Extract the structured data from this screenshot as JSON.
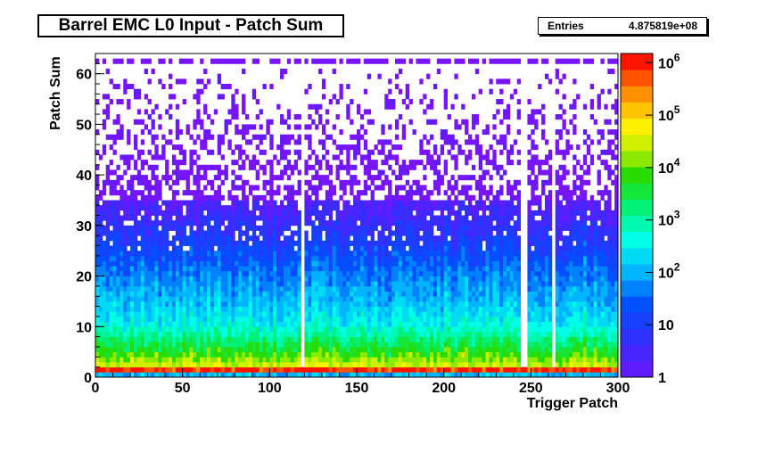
{
  "stats": {
    "label": "Entries",
    "value": "4.875819e+08"
  },
  "date_stamp": "",
  "chart_data": {
    "type": "heatmap",
    "title": "Barrel EMC L0 Input - Patch Sum",
    "xlabel": "Trigger Patch",
    "ylabel": "Patch Sum",
    "xlim": [
      0,
      300
    ],
    "ylim": [
      0,
      64
    ],
    "x_ticks": [
      0,
      50,
      100,
      150,
      200,
      250,
      300
    ],
    "x_tick_labels": [
      "0",
      "50",
      "100",
      "150",
      "200",
      "250",
      "300"
    ],
    "y_ticks": [
      0,
      10,
      20,
      30,
      40,
      50,
      60
    ],
    "y_tick_labels": [
      "0",
      "10",
      "20",
      "30",
      "40",
      "50",
      "60"
    ],
    "z_scale": "log",
    "zlim": [
      1,
      1500000
    ],
    "colorbar_ticks": [
      1,
      10,
      100,
      1000,
      10000,
      100000,
      1000000
    ],
    "colorbar_labels": [
      {
        "base": "1",
        "exp": ""
      },
      {
        "base": "10",
        "exp": ""
      },
      {
        "base": "10",
        "exp": "2"
      },
      {
        "base": "10",
        "exp": "3"
      },
      {
        "base": "10",
        "exp": "4"
      },
      {
        "base": "10",
        "exp": "5"
      },
      {
        "base": "10",
        "exp": "6"
      }
    ],
    "cell_size": [
      2,
      1
    ],
    "empty_patches": [
      118,
      245,
      262
    ],
    "profile": [
      {
        "y": 0,
        "log10_count": 2.2
      },
      {
        "y": 1,
        "log10_count": 6.1
      },
      {
        "y": 2,
        "log10_count": 4.6
      },
      {
        "y": 5,
        "log10_count": 3.8
      },
      {
        "y": 10,
        "log10_count": 2.7
      },
      {
        "y": 15,
        "log10_count": 2.2
      },
      {
        "y": 20,
        "log10_count": 1.8
      },
      {
        "y": 25,
        "log10_count": 1.3
      },
      {
        "y": 30,
        "log10_count": 0.8
      },
      {
        "y": 35,
        "log10_count": 0.4
      },
      {
        "y": 40,
        "log10_count": 0.1
      },
      {
        "y": 50,
        "log10_count": 0.0
      },
      {
        "y": 63,
        "log10_count": 0.0
      }
    ],
    "overflow_row": 62
  }
}
